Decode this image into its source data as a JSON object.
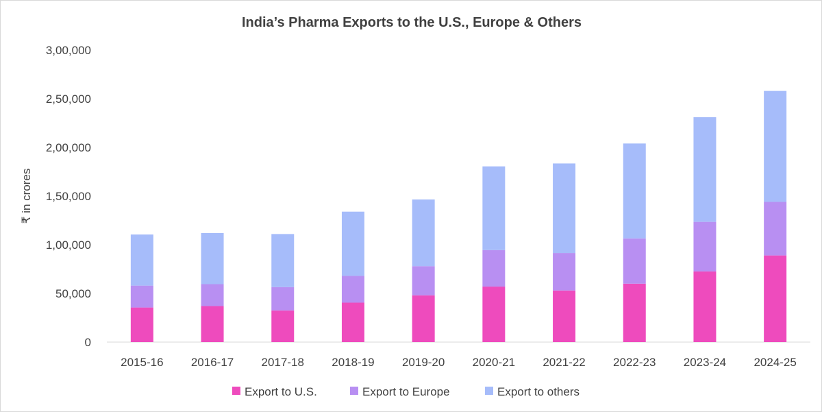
{
  "chart_data": {
    "type": "bar",
    "stacked": true,
    "title": "India’s Pharma Exports to the U.S., Europe & Others",
    "xlabel": "",
    "ylabel": "₹ in crores",
    "ylim": [
      0,
      300000
    ],
    "yticks": [
      0,
      50000,
      100000,
      150000,
      200000,
      250000,
      300000
    ],
    "ytick_labels": [
      "0",
      "50,000",
      "1,00,000",
      "1,50,000",
      "2,00,000",
      "2,50,000",
      "3,00,000"
    ],
    "grid": false,
    "legend_position": "bottom",
    "categories": [
      "2015-16",
      "2016-17",
      "2017-18",
      "2018-19",
      "2019-20",
      "2020-21",
      "2021-22",
      "2022-23",
      "2023-24",
      "2024-25"
    ],
    "series": [
      {
        "name": "Export to U.S.",
        "color": "#ee4bbd",
        "values": [
          35500,
          37000,
          32500,
          40500,
          48000,
          57000,
          53000,
          60000,
          72500,
          89000
        ]
      },
      {
        "name": "Export to Europe",
        "color": "#b88ff2",
        "values": [
          22500,
          22500,
          24000,
          27500,
          30000,
          37500,
          38500,
          46500,
          51000,
          55000
        ]
      },
      {
        "name": "Export to others",
        "color": "#a6bcfa",
        "values": [
          52500,
          52500,
          54500,
          66000,
          68500,
          86000,
          92000,
          97500,
          107500,
          114000
        ]
      }
    ]
  }
}
